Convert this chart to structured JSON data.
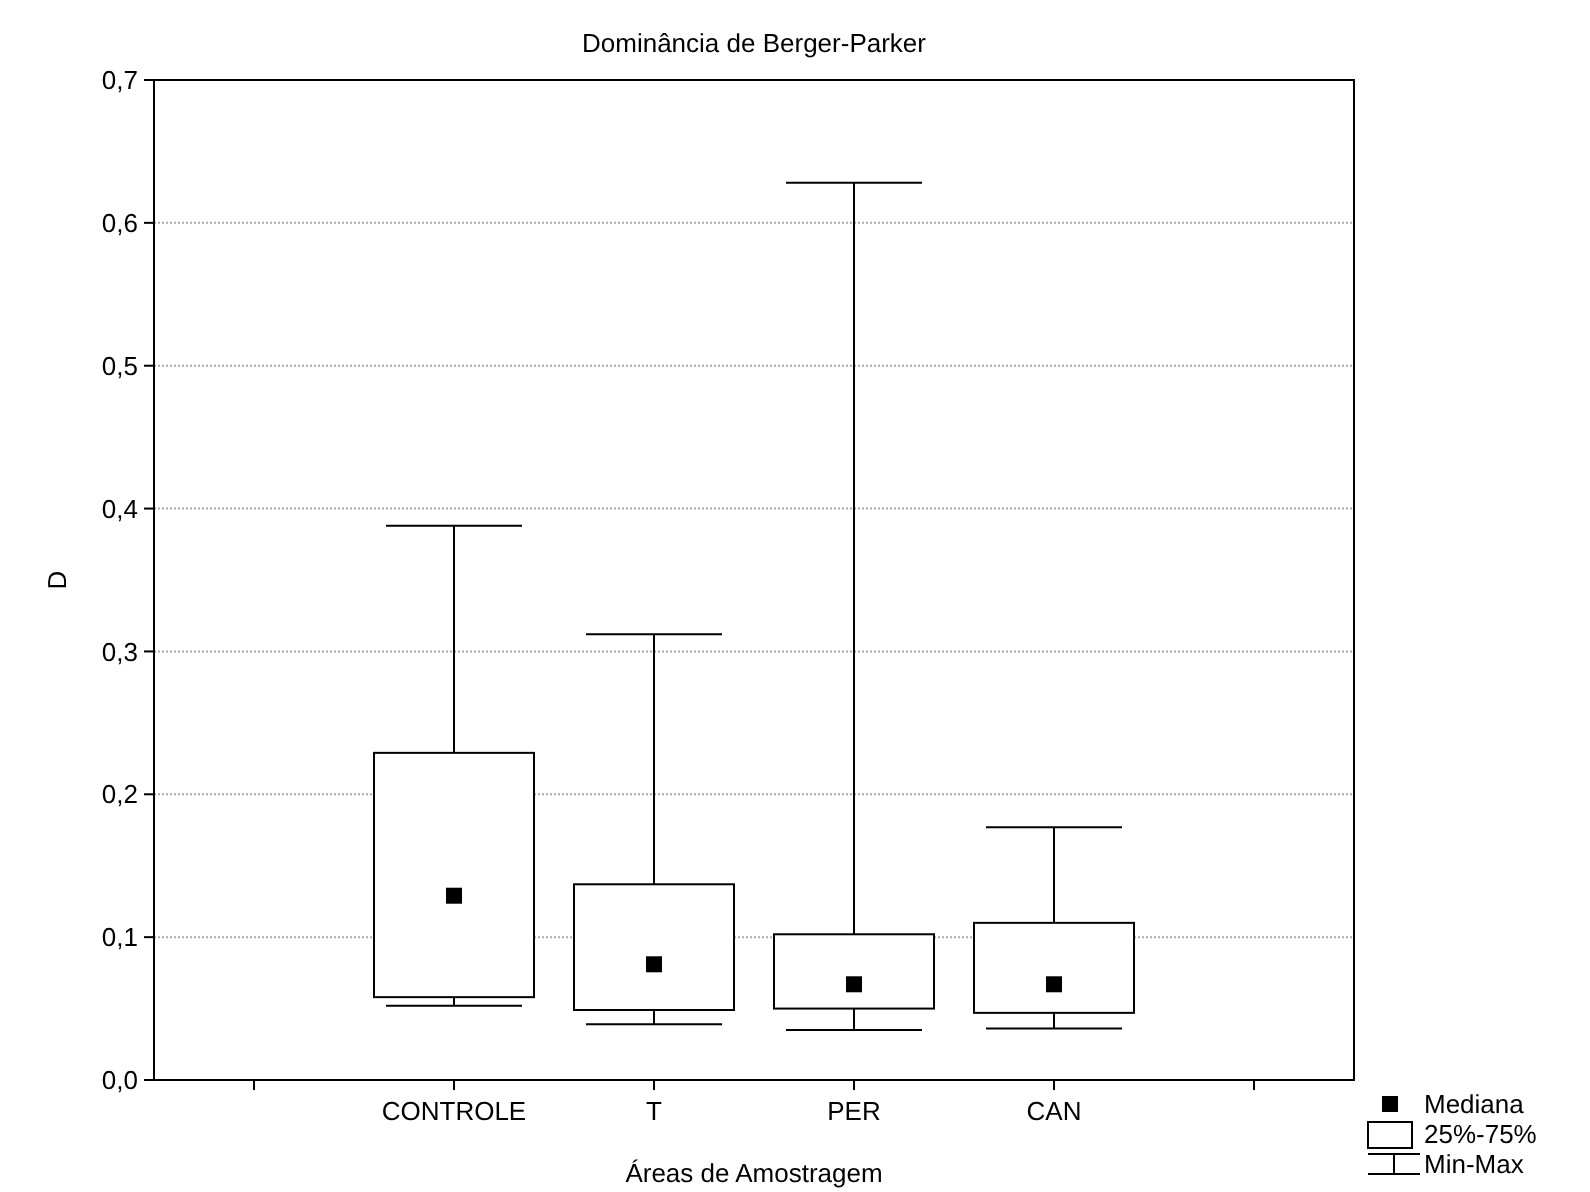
{
  "chart_data": {
    "type": "box",
    "title": "Dominância de Berger-Parker",
    "xlabel": "Áreas de Amostragem",
    "ylabel": "D",
    "categories": [
      "CONTROLE",
      "T",
      "PER",
      "CAN"
    ],
    "boxes": [
      {
        "low": 0.052,
        "q1": 0.058,
        "median": 0.129,
        "q3": 0.229,
        "high": 0.388
      },
      {
        "low": 0.039,
        "q1": 0.049,
        "median": 0.081,
        "q3": 0.137,
        "high": 0.312
      },
      {
        "low": 0.035,
        "q1": 0.05,
        "median": 0.067,
        "q3": 0.102,
        "high": 0.628
      },
      {
        "low": 0.036,
        "q1": 0.047,
        "median": 0.067,
        "q3": 0.11,
        "high": 0.177
      }
    ],
    "ylim": [
      0,
      0.7
    ],
    "yticks": [
      {
        "value": 0,
        "label": "0,0"
      },
      {
        "value": 0.1,
        "label": "0,1"
      },
      {
        "value": 0.2,
        "label": "0,2"
      },
      {
        "value": 0.3,
        "label": "0,3"
      },
      {
        "value": 0.4,
        "label": "0,4"
      },
      {
        "value": 0.5,
        "label": "0,5"
      },
      {
        "value": 0.6,
        "label": "0,6"
      },
      {
        "value": 0.7,
        "label": "0,7"
      }
    ],
    "grid": "y",
    "marker": "square",
    "annotations": [
      "Mediana",
      "25%-75%",
      "Min-Max"
    ]
  }
}
